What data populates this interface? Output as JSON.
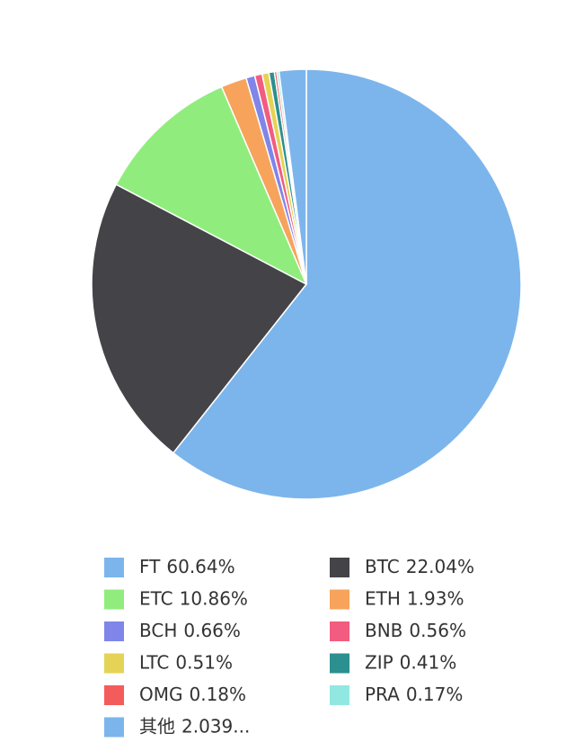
{
  "chart_data": {
    "type": "pie",
    "categories": [
      "FT",
      "BTC",
      "ETC",
      "ETH",
      "BCH",
      "BNB",
      "LTC",
      "ZIP",
      "OMG",
      "PRA",
      "其他"
    ],
    "values": [
      60.64,
      22.04,
      10.86,
      1.93,
      0.66,
      0.56,
      0.51,
      0.41,
      0.18,
      0.17,
      2.039
    ],
    "value_labels": [
      "60.64%",
      "22.04%",
      "10.86%",
      "1.93%",
      "0.66%",
      "0.56%",
      "0.51%",
      "0.41%",
      "0.18%",
      "0.17%",
      "2.039..."
    ],
    "colors": [
      "#7cb5ec",
      "#434348",
      "#90ed7d",
      "#f7a35c",
      "#8085e9",
      "#f15c80",
      "#e4d354",
      "#2b908f",
      "#f45b5b",
      "#91e8e1",
      "#7cb5ec"
    ],
    "legend": "bottom"
  }
}
